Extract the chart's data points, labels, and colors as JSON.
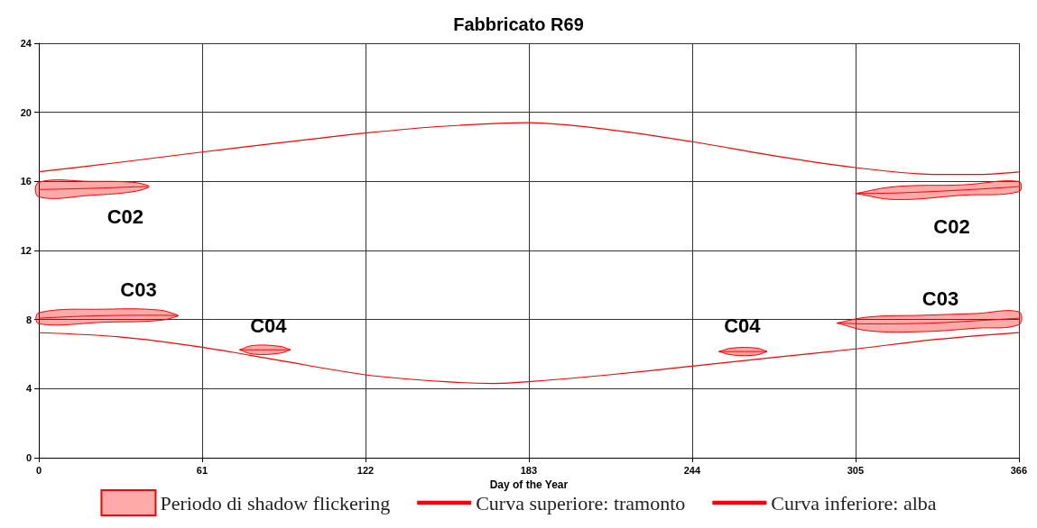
{
  "chart_data": {
    "type": "line",
    "title": "Fabbricato R69",
    "xlabel": "Day of the Year",
    "xlim": [
      0,
      366
    ],
    "xticks": [
      0,
      61,
      122,
      183,
      244,
      305,
      366
    ],
    "ylim": [
      0,
      24
    ],
    "yticks": [
      0,
      4,
      8,
      12,
      16,
      20,
      24
    ],
    "grid": true,
    "legend": "bottom",
    "marker": "none",
    "line_style": "solid",
    "series": [
      {
        "name": "Periodo di shadow flickering",
        "color": "#ff0000",
        "x": [
          0,
          20,
          35,
          41
        ],
        "values": [
          15.53,
          15.6,
          15.68,
          15.7
        ],
        "lower": [
          15.1,
          15.2,
          15.4,
          15.65
        ],
        "upper": [
          15.95,
          16.0,
          15.95,
          15.75
        ]
      },
      {
        "color": "#ff0000",
        "x": [
          305,
          320,
          345,
          366
        ],
        "values": [
          15.3,
          15.33,
          15.5,
          15.7
        ],
        "lower": [
          15.3,
          14.95,
          15.2,
          15.4
        ],
        "upper": [
          15.3,
          15.7,
          15.8,
          16.0
        ]
      },
      {
        "color": "#ff0000",
        "x": [
          0,
          25,
          45,
          52
        ],
        "values": [
          8.08,
          8.23,
          8.25,
          8.23
        ],
        "lower": [
          7.75,
          7.85,
          7.95,
          8.2
        ],
        "upper": [
          8.4,
          8.6,
          8.55,
          8.25
        ]
      },
      {
        "color": "#ff0000",
        "x": [
          298,
          310,
          330,
          350,
          366
        ],
        "values": [
          7.8,
          7.75,
          7.78,
          7.93,
          8.08
        ],
        "lower": [
          7.8,
          7.35,
          7.3,
          7.5,
          7.7
        ],
        "upper": [
          7.8,
          8.15,
          8.25,
          8.35,
          8.45
        ]
      },
      {
        "color": "#ff0000",
        "x": [
          75,
          80,
          90,
          94
        ],
        "values": [
          6.25,
          6.25,
          6.25,
          6.25
        ],
        "lower": [
          6.25,
          6.0,
          6.05,
          6.25
        ],
        "upper": [
          6.25,
          6.5,
          6.45,
          6.25
        ]
      },
      {
        "color": "#ff0000",
        "x": [
          254,
          259,
          268,
          272
        ],
        "values": [
          6.15,
          6.15,
          6.15,
          6.15
        ],
        "lower": [
          6.15,
          5.95,
          5.95,
          6.15
        ],
        "upper": [
          6.15,
          6.35,
          6.35,
          6.15
        ]
      },
      {
        "name": "Curva superiore: tramonto",
        "color": "#ff0000",
        "x": [
          0,
          30,
          61,
          91,
          122,
          152,
          183,
          213,
          244,
          274,
          305,
          335,
          350,
          366
        ],
        "values": [
          16.56,
          17.1,
          17.7,
          18.25,
          18.8,
          19.2,
          19.4,
          19.0,
          18.3,
          17.5,
          16.8,
          16.4,
          16.4,
          16.55
        ]
      },
      {
        "name": "Curva inferiore: alba",
        "color": "#ff0000",
        "x": [
          0,
          30,
          61,
          91,
          122,
          152,
          170,
          183,
          213,
          244,
          274,
          305,
          335,
          366
        ],
        "values": [
          7.24,
          7.0,
          6.4,
          5.6,
          4.8,
          4.4,
          4.3,
          4.4,
          4.8,
          5.3,
          5.8,
          6.3,
          6.85,
          7.25
        ]
      }
    ],
    "annotations": [
      {
        "text": "C02",
        "x": 35,
        "y": 15.68
      },
      {
        "text": "C02",
        "x": 345,
        "y": 15.5
      },
      {
        "text": "C03",
        "x": 45,
        "y": 8.25
      },
      {
        "text": "C03",
        "x": 330,
        "y": 7.78
      },
      {
        "text": "C04",
        "x": 80,
        "y": 6.25
      },
      {
        "text": "C04",
        "x": 259,
        "y": 6.15
      }
    ]
  }
}
